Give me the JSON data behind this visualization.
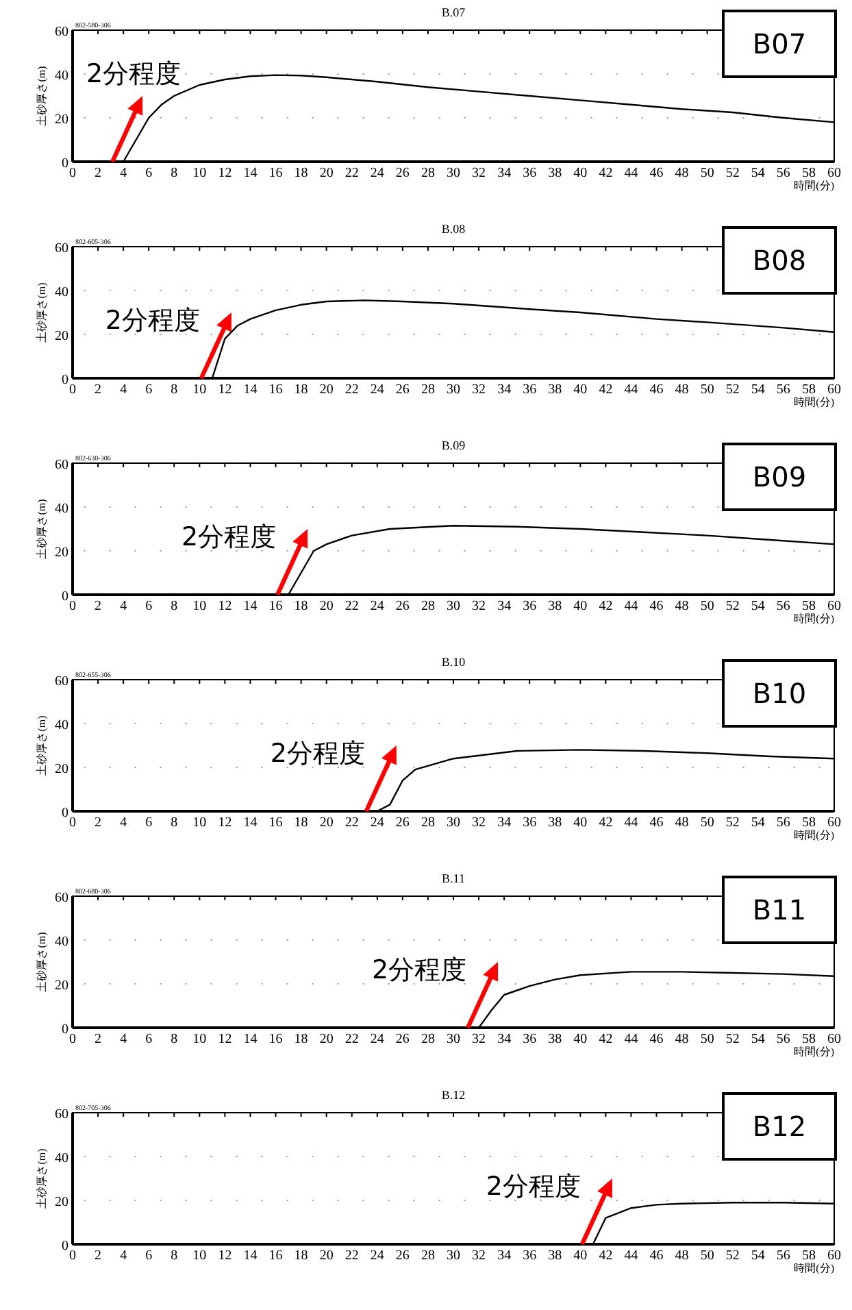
{
  "chart_data": [
    {
      "type": "line",
      "title": "B.07",
      "xlabel": "時間(分)",
      "ylabel": "土砂厚さ(m)",
      "xlim": [
        0,
        60
      ],
      "ylim": [
        0,
        60
      ],
      "xticks": [
        0,
        2,
        4,
        6,
        8,
        10,
        12,
        14,
        16,
        18,
        20,
        22,
        24,
        26,
        28,
        30,
        32,
        34,
        36,
        38,
        40,
        42,
        44,
        46,
        48,
        50,
        52,
        54,
        56,
        58,
        60
      ],
      "yticks": [
        0,
        20,
        40,
        60
      ],
      "grid": true,
      "series": [
        {
          "color": "#000000",
          "x": [
            0,
            4,
            5,
            6,
            7,
            8,
            10,
            12,
            14,
            16,
            18,
            20,
            24,
            28,
            32,
            36,
            40,
            44,
            48,
            52,
            56,
            60
          ],
          "values": [
            0,
            0,
            10,
            20,
            26,
            30,
            35,
            37.5,
            39,
            39.5,
            39.3,
            38.5,
            36.5,
            34,
            32,
            30,
            28,
            26,
            24,
            22.5,
            20,
            18
          ]
        }
      ],
      "annotations": [
        "802-580-306",
        "B07",
        {
          "text": "2分程度",
          "x": 4,
          "y": 0
        }
      ]
    },
    {
      "type": "line",
      "title": "B.08",
      "xlabel": "時間(分)",
      "ylabel": "土砂厚さ(m)",
      "xlim": [
        0,
        60
      ],
      "ylim": [
        0,
        60
      ],
      "xticks": [
        0,
        2,
        4,
        6,
        8,
        10,
        12,
        14,
        16,
        18,
        20,
        22,
        24,
        26,
        28,
        30,
        32,
        34,
        36,
        38,
        40,
        42,
        44,
        46,
        48,
        50,
        52,
        54,
        56,
        58,
        60
      ],
      "yticks": [
        0,
        20,
        40,
        60
      ],
      "grid": true,
      "series": [
        {
          "color": "#000000",
          "x": [
            0,
            11,
            12,
            13,
            14,
            16,
            18,
            20,
            23,
            26,
            30,
            36,
            40,
            46,
            50,
            56,
            60
          ],
          "values": [
            0,
            0,
            18,
            24,
            27,
            31,
            33.5,
            35,
            35.5,
            35,
            34,
            31.5,
            30,
            27,
            25.5,
            23,
            21
          ]
        }
      ],
      "annotations": [
        "802-605-306",
        "B08",
        {
          "text": "2分程度",
          "x": 11,
          "y": 0
        }
      ]
    },
    {
      "type": "line",
      "title": "B.09",
      "xlabel": "時間(分)",
      "ylabel": "土砂厚さ(m)",
      "xlim": [
        0,
        60
      ],
      "ylim": [
        0,
        60
      ],
      "xticks": [
        0,
        2,
        4,
        6,
        8,
        10,
        12,
        14,
        16,
        18,
        20,
        22,
        24,
        26,
        28,
        30,
        32,
        34,
        36,
        38,
        40,
        42,
        44,
        46,
        48,
        50,
        52,
        54,
        56,
        58,
        60
      ],
      "yticks": [
        0,
        20,
        40,
        60
      ],
      "grid": true,
      "series": [
        {
          "color": "#000000",
          "x": [
            0,
            17,
            19,
            20,
            22,
            25,
            30,
            35,
            40,
            45,
            50,
            55,
            60
          ],
          "values": [
            0,
            0,
            20,
            23,
            27,
            30,
            31.5,
            31,
            30,
            28.5,
            27,
            25,
            23
          ]
        }
      ],
      "annotations": [
        "802-630-306",
        "B09",
        {
          "text": "2分程度",
          "x": 17,
          "y": 0
        }
      ]
    },
    {
      "type": "line",
      "title": "B.10",
      "xlabel": "時間(分)",
      "ylabel": "土砂厚さ(m)",
      "xlim": [
        0,
        60
      ],
      "ylim": [
        0,
        60
      ],
      "xticks": [
        0,
        2,
        4,
        6,
        8,
        10,
        12,
        14,
        16,
        18,
        20,
        22,
        24,
        26,
        28,
        30,
        32,
        34,
        36,
        38,
        40,
        42,
        44,
        46,
        48,
        50,
        52,
        54,
        56,
        58,
        60
      ],
      "yticks": [
        0,
        20,
        40,
        60
      ],
      "grid": true,
      "series": [
        {
          "color": "#000000",
          "x": [
            0,
            24,
            25,
            26,
            27,
            30,
            35,
            40,
            45,
            50,
            55,
            60
          ],
          "values": [
            0,
            0,
            3,
            14,
            19,
            24,
            27.5,
            28,
            27.5,
            26.5,
            25,
            24
          ]
        }
      ],
      "annotations": [
        "802-655-306",
        "B10",
        {
          "text": "2分程度",
          "x": 24,
          "y": 0
        }
      ]
    },
    {
      "type": "line",
      "title": "B.11",
      "xlabel": "時間(分)",
      "ylabel": "土砂厚さ(m)",
      "xlim": [
        0,
        60
      ],
      "ylim": [
        0,
        60
      ],
      "xticks": [
        0,
        2,
        4,
        6,
        8,
        10,
        12,
        14,
        16,
        18,
        20,
        22,
        24,
        26,
        28,
        30,
        32,
        34,
        36,
        38,
        40,
        42,
        44,
        46,
        48,
        50,
        52,
        54,
        56,
        58,
        60
      ],
      "yticks": [
        0,
        20,
        40,
        60
      ],
      "grid": true,
      "series": [
        {
          "color": "#000000",
          "x": [
            0,
            32,
            33,
            34,
            36,
            38,
            40,
            44,
            48,
            52,
            56,
            60
          ],
          "values": [
            0,
            0,
            8,
            15,
            19,
            22,
            24,
            25.5,
            25.5,
            25,
            24.5,
            23.5
          ]
        }
      ],
      "annotations": [
        "802-680-306",
        "B11",
        {
          "text": "2分程度",
          "x": 32,
          "y": 0
        }
      ]
    },
    {
      "type": "line",
      "title": "B.12",
      "xlabel": "時間(分)",
      "ylabel": "土砂厚さ(m)",
      "xlim": [
        0,
        60
      ],
      "ylim": [
        0,
        60
      ],
      "xticks": [
        0,
        2,
        4,
        6,
        8,
        10,
        12,
        14,
        16,
        18,
        20,
        22,
        24,
        26,
        28,
        30,
        32,
        34,
        36,
        38,
        40,
        42,
        44,
        46,
        48,
        50,
        52,
        54,
        56,
        58,
        60
      ],
      "yticks": [
        0,
        20,
        40,
        60
      ],
      "grid": true,
      "series": [
        {
          "color": "#000000",
          "x": [
            0,
            41,
            42,
            44,
            46,
            48,
            52,
            56,
            60
          ],
          "values": [
            0,
            0,
            12,
            16.5,
            18,
            18.5,
            19,
            19,
            18.5
          ]
        }
      ],
      "annotations": [
        "802-705-306",
        "B12",
        {
          "text": "2分程度",
          "x": 41,
          "y": 0
        }
      ]
    }
  ]
}
